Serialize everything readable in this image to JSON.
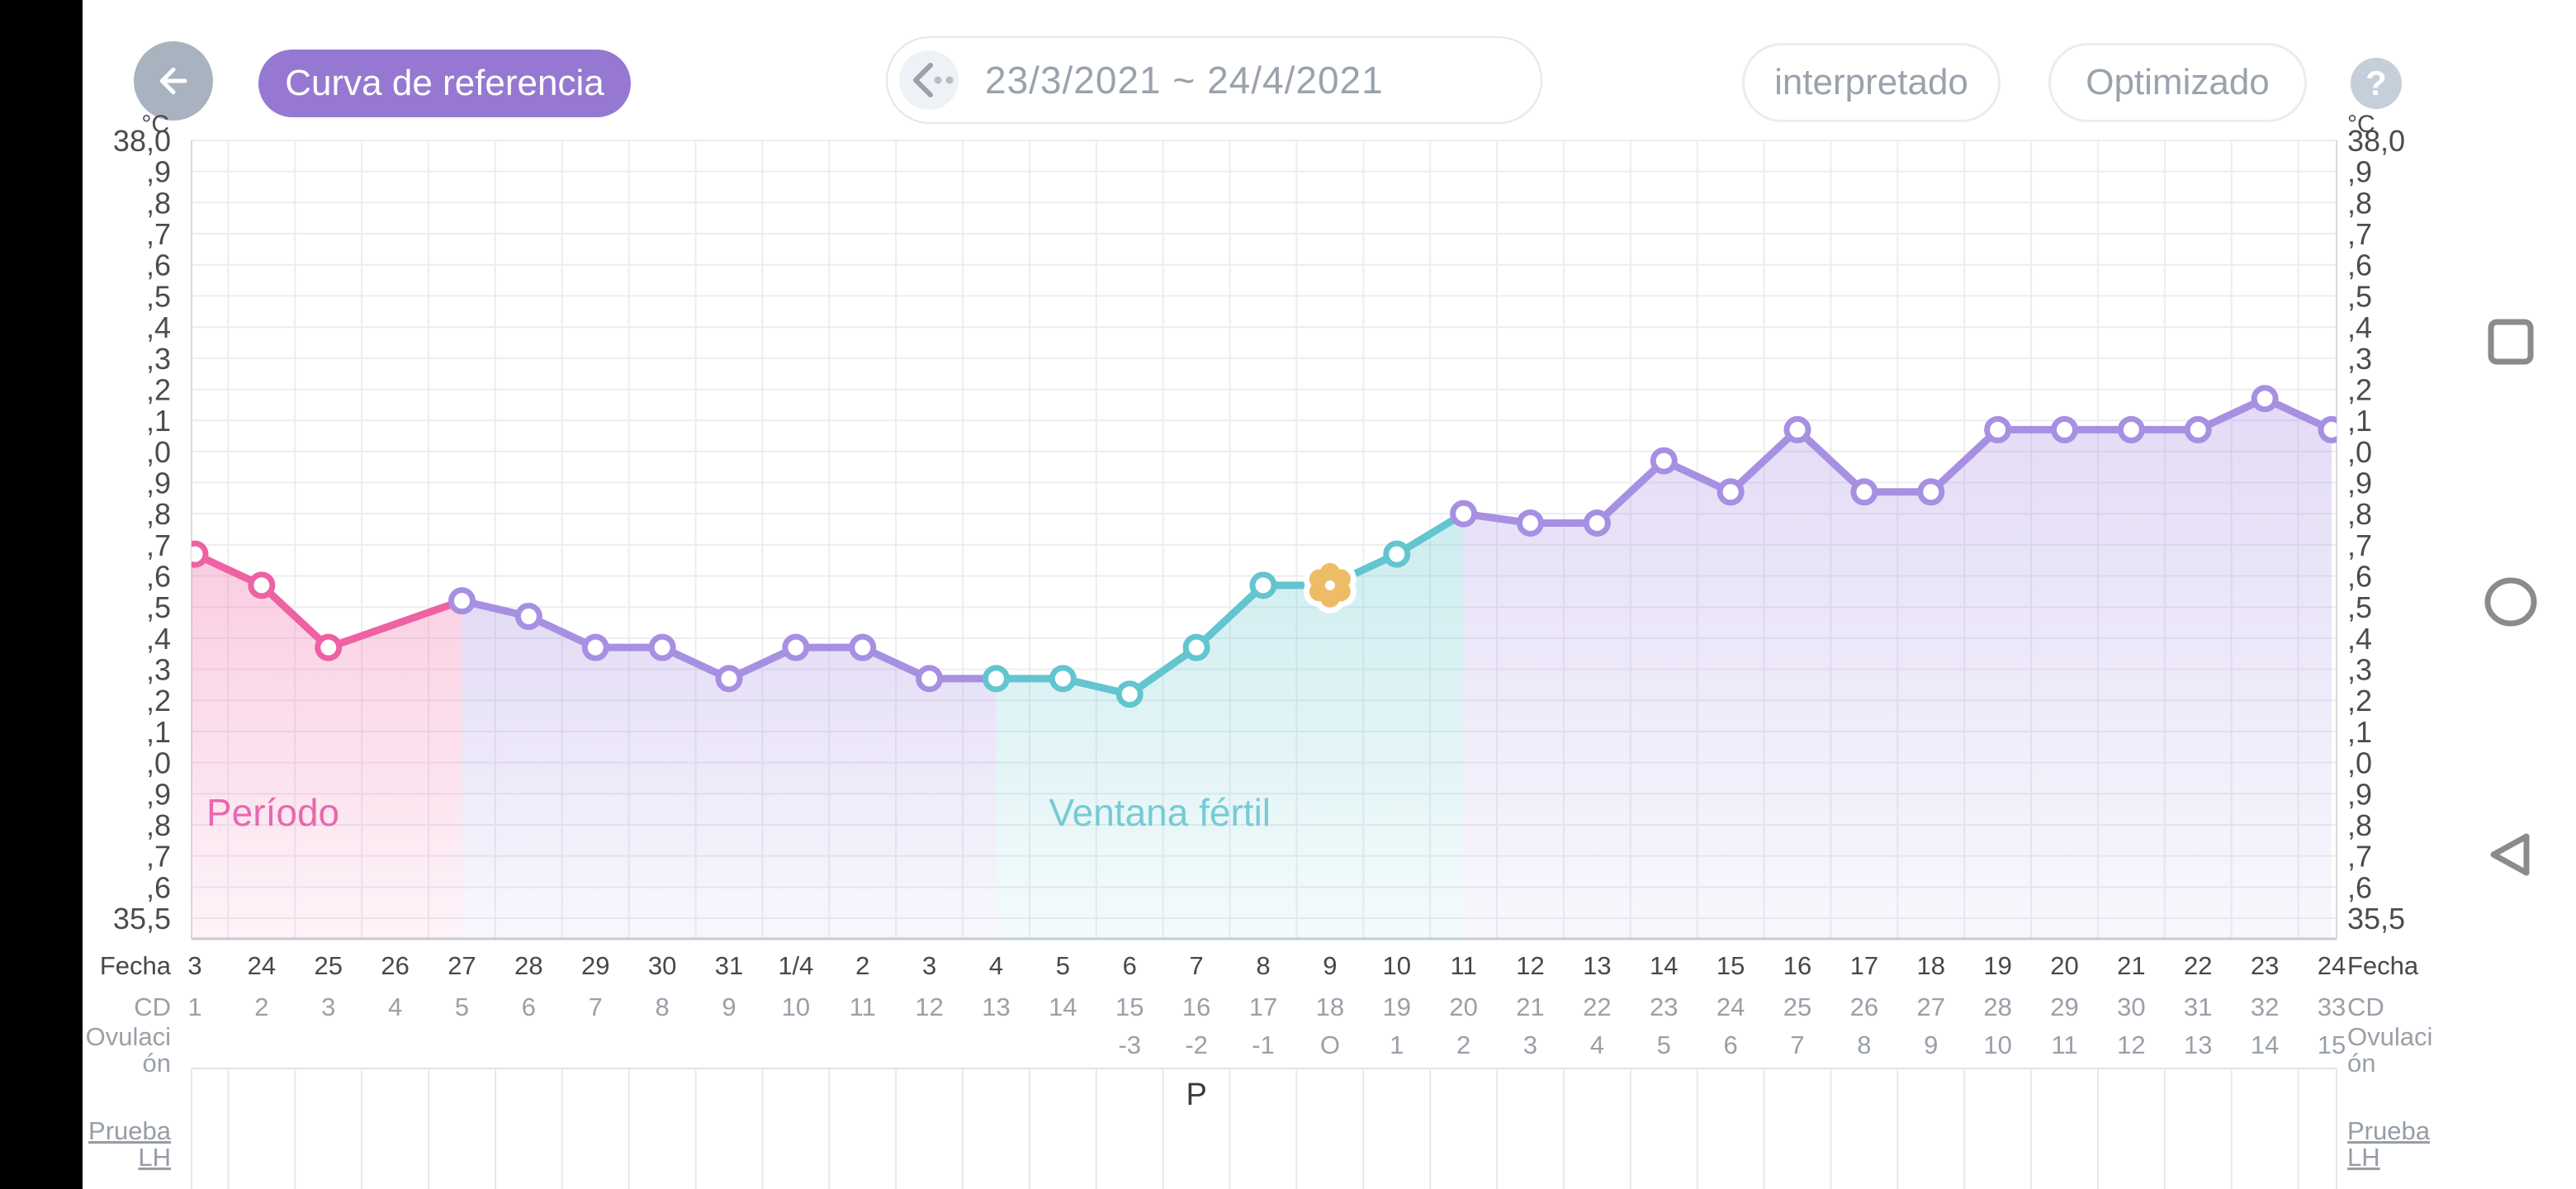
{
  "header": {
    "reference_curve_label": "Curva de referencia",
    "date_range": "23/3/2021 ~ 24/4/2021",
    "interpretado_label": "interpretado",
    "optimizado_label": "Optimizado",
    "help_label": "?"
  },
  "colors": {
    "period_pink": "#ee61a2",
    "purple": "#a78fe2",
    "teal": "#62c5cf",
    "flower_orange": "#eebc66",
    "accent_pill_purple": "#9678d2",
    "grid": "#ededf0",
    "tick_text": "#4c4c4f",
    "muted_text": "#9aa0a8",
    "dark_row_text": "#46484c"
  },
  "chart_data": {
    "type": "line",
    "title": "",
    "ylabel_unit": "°C",
    "y_min": 35.5,
    "y_max": 38.0,
    "y_step": 0.1,
    "grid": true,
    "y_tick_labels": [
      "38,0",
      ",9",
      ",8",
      ",7",
      ",6",
      ",5",
      ",4",
      ",3",
      ",2",
      ",1",
      ",0",
      ",9",
      ",8",
      ",7",
      ",6",
      ",5",
      ",4",
      ",3",
      ",2",
      ",1",
      ",0",
      ",9",
      ",8",
      ",7",
      ",6",
      "35,5"
    ],
    "row_labels": {
      "fecha": "Fecha",
      "cd": "CD",
      "ovulacion_line1": "Ovulaci",
      "ovulacion_line2": "ón",
      "prueba_line1": "Prueba",
      "prueba_line2": "LH"
    },
    "fecha_labels": [
      "3",
      "24",
      "25",
      "26",
      "27",
      "28",
      "29",
      "30",
      "31",
      "1/4",
      "2",
      "3",
      "4",
      "5",
      "6",
      "7",
      "8",
      "9",
      "10",
      "11",
      "12",
      "13",
      "14",
      "15",
      "16",
      "17",
      "18",
      "19",
      "20",
      "21",
      "22",
      "23",
      "24"
    ],
    "cd_labels": [
      "1",
      "2",
      "3",
      "4",
      "5",
      "6",
      "7",
      "8",
      "9",
      "10",
      "11",
      "12",
      "13",
      "14",
      "15",
      "16",
      "17",
      "18",
      "19",
      "20",
      "21",
      "22",
      "23",
      "24",
      "25",
      "26",
      "27",
      "28",
      "29",
      "30",
      "31",
      "32",
      "33"
    ],
    "ovulacion_labels": [
      "",
      "",
      "",
      "",
      "",
      "",
      "",
      "",
      "",
      "",
      "",
      "",
      "",
      "",
      "-3",
      "-2",
      "-1",
      "O",
      "1",
      "2",
      "3",
      "4",
      "5",
      "6",
      "7",
      "8",
      "9",
      "10",
      "11",
      "12",
      "13",
      "14",
      "15"
    ],
    "series": [
      {
        "name": "temperatura-basal",
        "values": [
          36.67,
          36.57,
          36.37,
          null,
          36.52,
          36.47,
          36.37,
          36.37,
          36.27,
          36.37,
          36.37,
          36.27,
          36.27,
          36.27,
          36.22,
          36.37,
          36.57,
          36.57,
          36.67,
          36.8,
          36.77,
          36.77,
          36.97,
          36.87,
          37.07,
          36.87,
          36.87,
          37.07,
          37.07,
          37.07,
          37.07,
          37.17,
          37.07
        ]
      }
    ],
    "ovulation_cd": 18,
    "lh_positive": {
      "cd": 16,
      "label": "P"
    },
    "zones": [
      {
        "name": "periodo",
        "label": "Período",
        "start_cd": 1,
        "end_cd": 5,
        "line_color": "#ee61a2",
        "label_color": "#e868ae"
      },
      {
        "name": "preovulatoria",
        "label": "",
        "start_cd": 5,
        "end_cd": 13,
        "line_color": "#a78fe2",
        "label_color": "#a78fe2"
      },
      {
        "name": "ventana-fertil",
        "label": "Ventana fértil",
        "start_cd": 13,
        "end_cd": 20,
        "line_color": "#62c5cf",
        "label_color": "#76cbd4"
      },
      {
        "name": "luteal",
        "label": "",
        "start_cd": 20,
        "end_cd": 33,
        "line_color": "#a78fe2",
        "label_color": "#a78fe2"
      }
    ]
  },
  "nav": {
    "square_icon": "recents",
    "circle_icon": "home",
    "triangle_icon": "back"
  }
}
